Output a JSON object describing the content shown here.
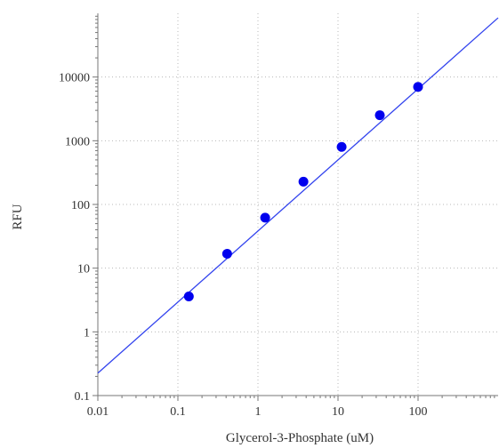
{
  "chart_data": {
    "type": "scatter",
    "title": "",
    "xlabel": "Glycerol-3-Phosphate (uM)",
    "ylabel": "RFU",
    "x_scale": "log",
    "y_scale": "log",
    "xlim": [
      0.01,
      1000
    ],
    "ylim": [
      0.1,
      100000
    ],
    "x_ticks": [
      0.01,
      0.1,
      1,
      10,
      100
    ],
    "x_tick_labels": [
      "0.01",
      "0.1",
      "1",
      "10",
      "100"
    ],
    "y_ticks": [
      0.1,
      1,
      10,
      100,
      1000,
      10000
    ],
    "y_tick_labels": [
      "0.1",
      "1",
      "10",
      "100",
      "1000",
      "10000"
    ],
    "grid": true,
    "legend": "none",
    "series": [
      {
        "type": "scatter",
        "color": "#0000ee",
        "x": [
          0.137,
          0.412,
          1.23,
          3.7,
          11.1,
          33.3,
          100
        ],
        "y": [
          3.6,
          16.8,
          62,
          228,
          800,
          2520,
          7000
        ]
      }
    ],
    "fit_line": {
      "color": "#3344ee",
      "x": [
        0.01,
        1000
      ],
      "y": [
        0.225,
        85000
      ]
    }
  }
}
